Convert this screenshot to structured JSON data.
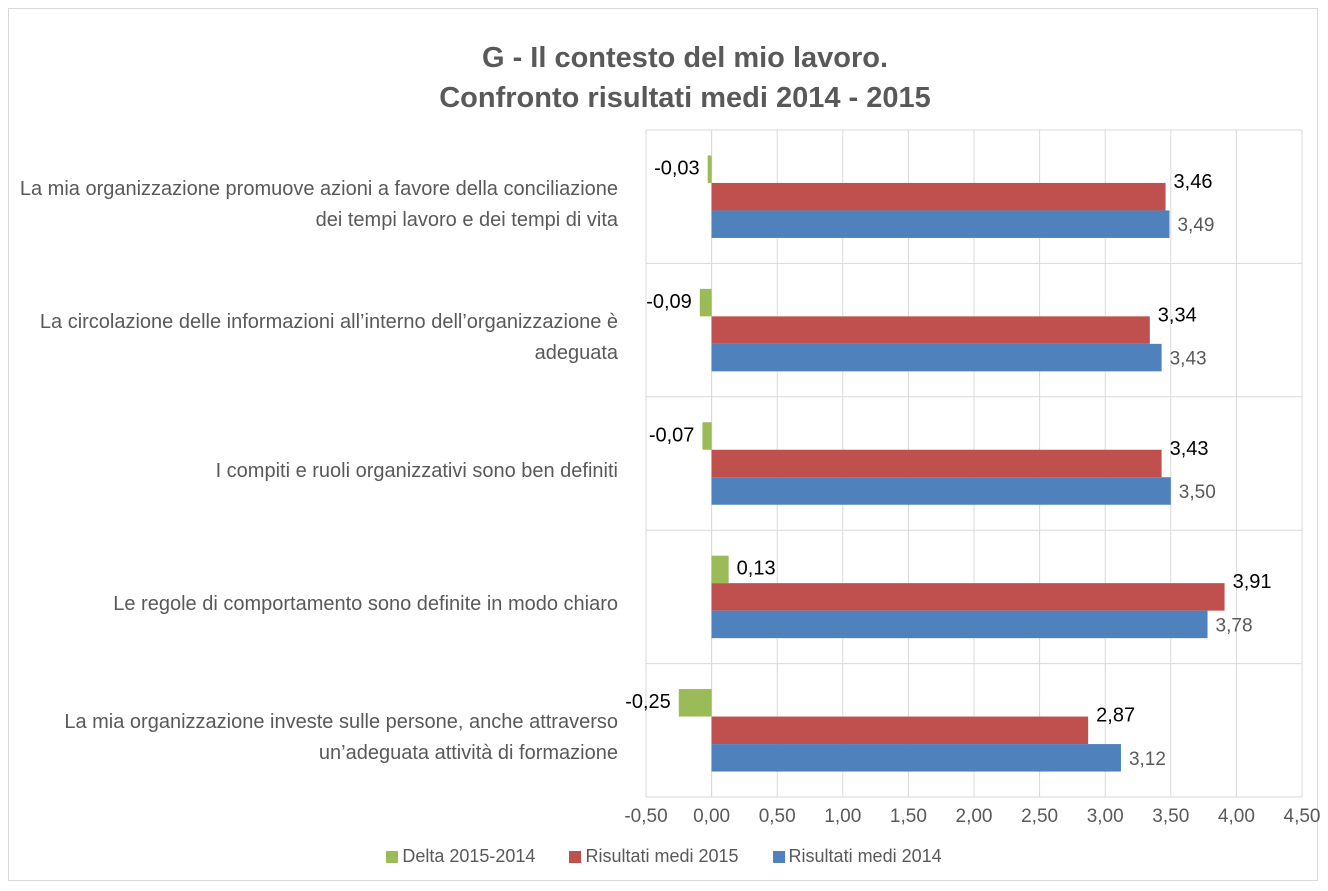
{
  "chart_data": {
    "type": "bar",
    "orientation": "horizontal",
    "title": "G - Il contesto del mio lavoro.\nConfronto risultati medi 2014 - 2015",
    "categories": [
      "La mia organizzazione promuove azioni a favore della conciliazione dei tempi lavoro e dei tempi di vita",
      "La circolazione delle informazioni all’interno dell’organizzazione è adeguata",
      "I compiti e ruoli organizzativi sono ben definiti",
      "Le regole di comportamento sono definite in modo chiaro",
      "La mia organizzazione investe sulle persone, anche attraverso un’adeguata attività di formazione"
    ],
    "series": [
      {
        "name": "Delta 2015-2014",
        "color": "#9bbb59",
        "values": [
          -0.03,
          -0.09,
          -0.07,
          0.13,
          -0.25
        ],
        "value_labels": [
          "-0,03",
          "-0,09",
          "-0,07",
          "0,13",
          "-0,25"
        ]
      },
      {
        "name": "Risultati medi 2015",
        "color": "#c0504d",
        "values": [
          3.46,
          3.34,
          3.43,
          3.91,
          2.87
        ],
        "value_labels": [
          "3,46",
          "3,34",
          "3,43",
          "3,91",
          "2,87"
        ]
      },
      {
        "name": "Risultati medi 2014",
        "color": "#4f81bd",
        "values": [
          3.49,
          3.43,
          3.5,
          3.78,
          3.12
        ],
        "value_labels": [
          "3,49",
          "3,43",
          "3,50",
          "3,78",
          "3,12"
        ]
      }
    ],
    "xlim": [
      -0.5,
      4.5
    ],
    "xticks": [
      {
        "value": -0.5,
        "label": "-0,50"
      },
      {
        "value": 0,
        "label": "0,00"
      },
      {
        "value": 0.5,
        "label": "0,50"
      },
      {
        "value": 1,
        "label": "1,00"
      },
      {
        "value": 1.5,
        "label": "1,50"
      },
      {
        "value": 2,
        "label": "2,00"
      },
      {
        "value": 2.5,
        "label": "2,50"
      },
      {
        "value": 3,
        "label": "3,00"
      },
      {
        "value": 3.5,
        "label": "3,50"
      },
      {
        "value": 4,
        "label": "4,00"
      },
      {
        "value": 4.5,
        "label": "4,50"
      }
    ],
    "grid": true,
    "legend": "bottom"
  }
}
